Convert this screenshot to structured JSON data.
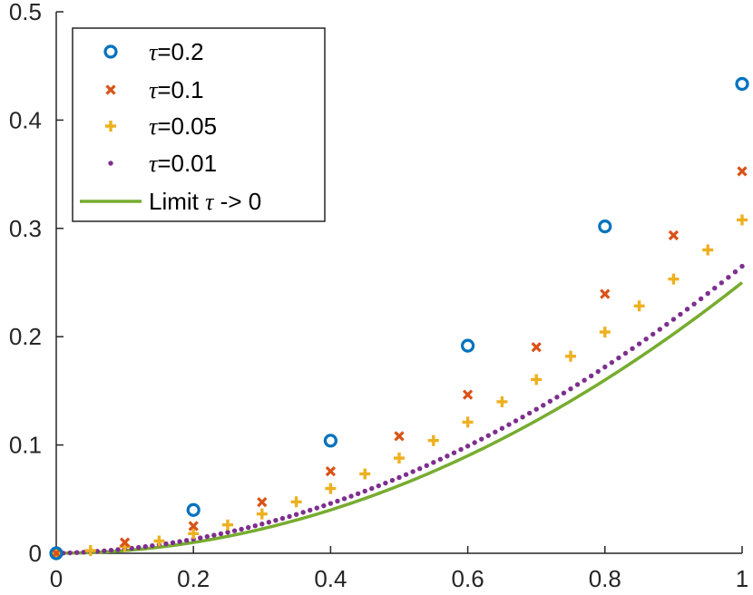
{
  "chart_data": {
    "type": "scatter",
    "title": "",
    "xlabel": "",
    "ylabel": "",
    "xlim": [
      0,
      1
    ],
    "ylim": [
      0,
      0.5
    ],
    "xticks": [
      0,
      0.2,
      0.4,
      0.6,
      0.8,
      1
    ],
    "xtick_labels": [
      "0",
      "0.2",
      "0.4",
      "0.6",
      "0.8",
      "1"
    ],
    "yticks": [
      0,
      0.1,
      0.2,
      0.3,
      0.4,
      0.5
    ],
    "ytick_labels": [
      "0",
      "0.1",
      "0.2",
      "0.3",
      "0.4",
      "0.5"
    ],
    "grid": false,
    "legend_position": "top-left",
    "series": [
      {
        "name": "τ=0.2",
        "tau": 0.2,
        "marker": "circle",
        "color": "#0072BD",
        "x": [
          0,
          0.2,
          0.4,
          0.6,
          0.8,
          1.0
        ],
        "y": [
          0,
          0.04,
          0.104,
          0.1917,
          0.3018,
          0.4334
        ]
      },
      {
        "name": "τ=0.1",
        "tau": 0.1,
        "marker": "x",
        "color": "#D95319",
        "x": [
          0,
          0.1,
          0.2,
          0.3,
          0.4,
          0.5,
          0.6,
          0.7,
          0.8,
          0.9,
          1.0
        ],
        "y": [
          0,
          0.01,
          0.0251,
          0.0472,
          0.0757,
          0.1081,
          0.1465,
          0.1903,
          0.2394,
          0.2936,
          0.3527
        ]
      },
      {
        "name": "τ=0.05",
        "tau": 0.05,
        "marker": "plus",
        "color": "#EDB120",
        "x": [
          0,
          0.05,
          0.1,
          0.15,
          0.2,
          0.25,
          0.3,
          0.35,
          0.4,
          0.45,
          0.5,
          0.55,
          0.6,
          0.65,
          0.7,
          0.75,
          0.8,
          0.85,
          0.9,
          0.95,
          1.0
        ],
        "y": [
          0,
          0.0025,
          0.0063,
          0.0113,
          0.0182,
          0.0262,
          0.0363,
          0.0475,
          0.0598,
          0.0733,
          0.0879,
          0.1041,
          0.1211,
          0.1399,
          0.1604,
          0.1819,
          0.2043,
          0.2284,
          0.2532,
          0.2801,
          0.3078
        ]
      },
      {
        "name": "τ=0.01",
        "tau": 0.01,
        "marker": "dot",
        "color": "#7E2F8E",
        "formula": "0.25*x^2 + 0.015*x",
        "x_step": 0.01,
        "x_range": [
          0,
          1
        ]
      },
      {
        "name": "Limit   τ -> 0",
        "marker": "line",
        "color": "#77AC30",
        "formula": "0.25*x^2",
        "x_range": [
          0,
          1
        ]
      }
    ]
  },
  "legend": {
    "items": [
      {
        "prefix": "τ",
        "text": "=0.2"
      },
      {
        "prefix": "τ",
        "text": "=0.1"
      },
      {
        "prefix": "τ",
        "text": "=0.05"
      },
      {
        "prefix": "τ",
        "text": "=0.01"
      },
      {
        "prefix_text": "Limit   ",
        "prefix": "τ",
        "text": " -> 0"
      }
    ]
  }
}
